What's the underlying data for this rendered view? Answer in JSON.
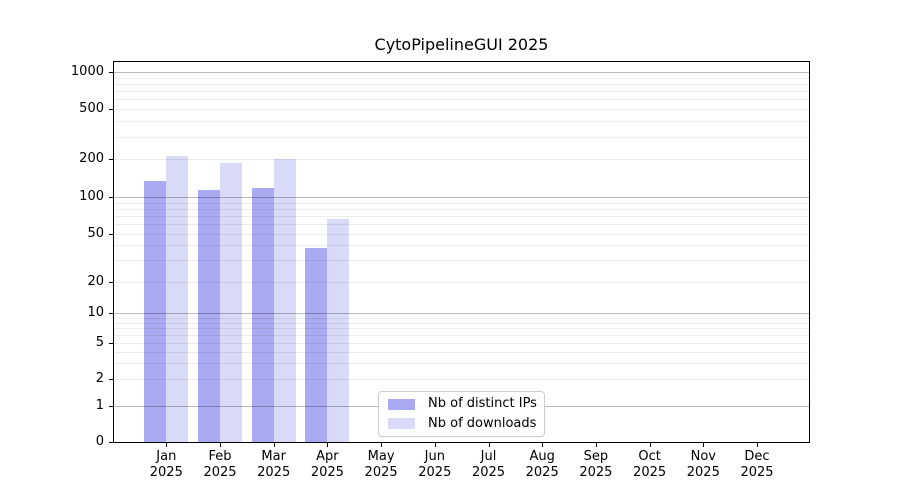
{
  "chart_data": {
    "type": "bar",
    "title": "CytoPipelineGUI 2025",
    "x_axis": {
      "months": [
        "Jan",
        "Feb",
        "Mar",
        "Apr",
        "May",
        "Jun",
        "Jul",
        "Aug",
        "Sep",
        "Oct",
        "Nov",
        "Dec"
      ],
      "year": "2025"
    },
    "y_axis": {
      "scale": "symlog",
      "ticks": [
        0,
        1,
        2,
        5,
        10,
        20,
        50,
        100,
        200,
        500,
        1000
      ],
      "major_gridlines": [
        1,
        10,
        100,
        1000
      ]
    },
    "grid": true,
    "legend_position": "inside-bottom-center",
    "series": [
      {
        "name": "Nb of distinct IPs",
        "color": "#aaaaf2",
        "values": [
          135,
          114,
          119,
          38,
          null,
          null,
          null,
          null,
          null,
          null,
          null,
          null
        ]
      },
      {
        "name": "Nb of downloads",
        "color": "#d9d9f8",
        "values": [
          210,
          185,
          200,
          66,
          null,
          null,
          null,
          null,
          null,
          null,
          null,
          null
        ]
      }
    ]
  }
}
